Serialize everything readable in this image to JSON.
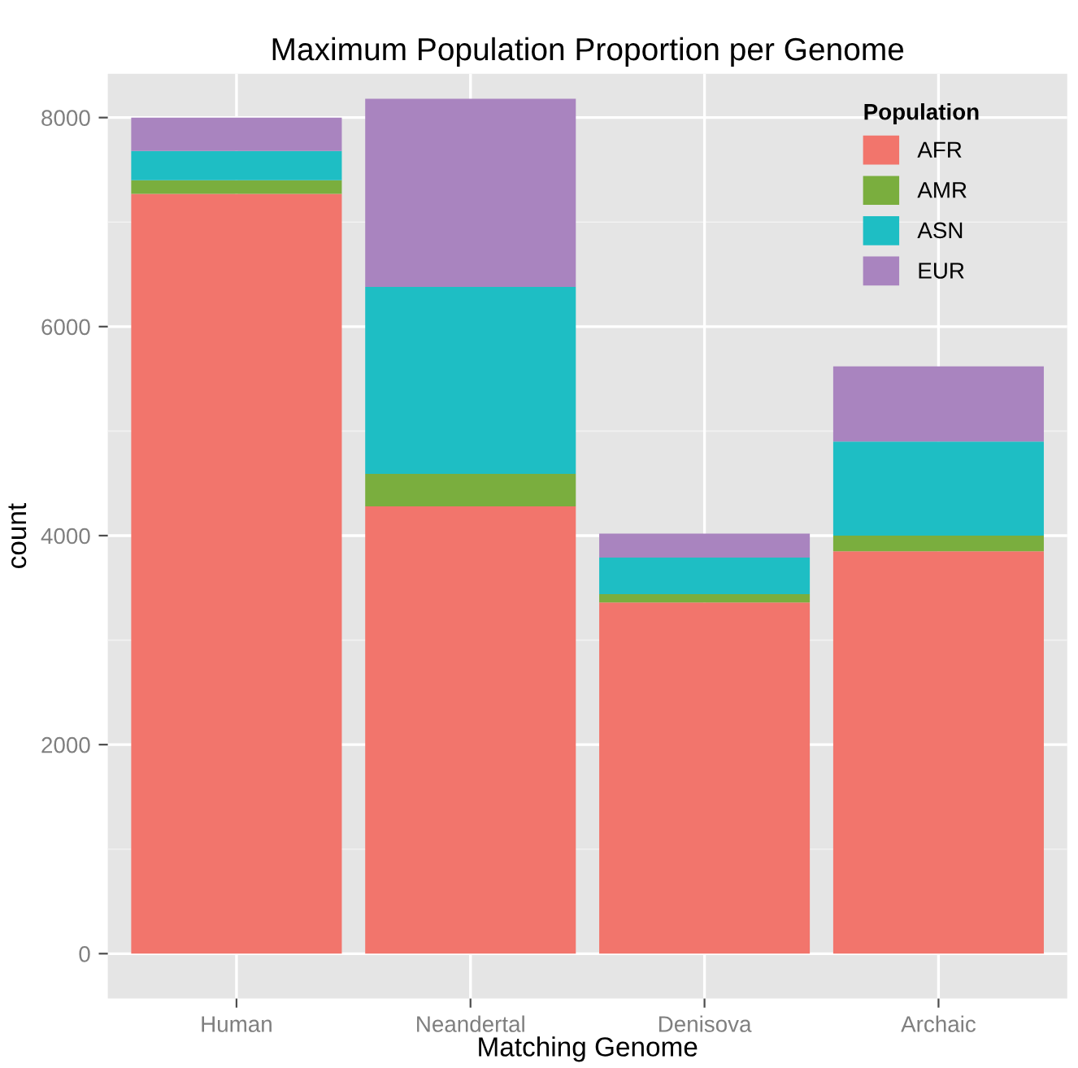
{
  "chart_data": {
    "type": "bar",
    "title": "Maximum Population Proportion per Genome",
    "xlabel": "Matching Genome",
    "ylabel": "count",
    "legend_title": "Population",
    "categories": [
      "Human",
      "Neandertal",
      "Denisova",
      "Archaic"
    ],
    "stacked": true,
    "series": [
      {
        "name": "AFR",
        "color": "#f2756c",
        "values": [
          7270,
          4280,
          3360,
          3850
        ]
      },
      {
        "name": "AMR",
        "color": "#7aae3e",
        "values": [
          130,
          310,
          80,
          150
        ]
      },
      {
        "name": "ASN",
        "color": "#1ebec4",
        "values": [
          280,
          1790,
          350,
          900
        ]
      },
      {
        "name": "EUR",
        "color": "#a984bf",
        "values": [
          320,
          1800,
          230,
          720
        ]
      }
    ],
    "ylim": [
      -430,
      8420
    ],
    "yticks": [
      0,
      2000,
      4000,
      6000,
      8000
    ],
    "grid": true,
    "legend": "top right"
  }
}
